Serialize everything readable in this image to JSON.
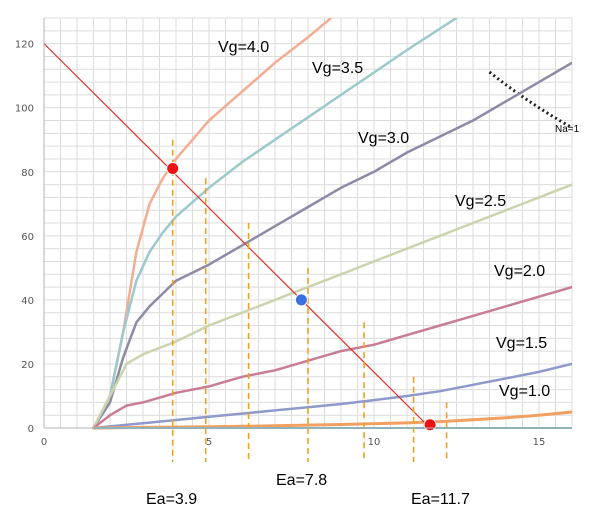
{
  "chart_data": {
    "type": "line",
    "title": "",
    "xlabel": "",
    "ylabel": "",
    "xlim": [
      0,
      16
    ],
    "ylim": [
      0,
      128
    ],
    "x_ticks": [
      0,
      5,
      10,
      15
    ],
    "y_ticks": [
      0,
      20,
      40,
      60,
      80,
      100,
      120
    ],
    "grid": true,
    "series": [
      {
        "name": "Vg=4.0",
        "color": "#f3ad93",
        "x": [
          1.5,
          2.0,
          2.4,
          2.8,
          3.2,
          3.6,
          4.0,
          5.0,
          6.0,
          7.0,
          8.0,
          8.7
        ],
        "y": [
          0,
          10,
          30,
          55,
          70,
          78,
          84,
          96,
          105,
          114,
          122,
          128
        ]
      },
      {
        "name": "Vg=3.5",
        "color": "#9bc9cc",
        "x": [
          1.5,
          2.0,
          2.4,
          2.8,
          3.2,
          3.6,
          4.0,
          5.0,
          6.0,
          7.0,
          8.0,
          9.0,
          10.0,
          11.0,
          12.5
        ],
        "y": [
          0,
          10,
          30,
          46,
          55,
          61,
          66,
          75,
          83,
          90,
          97,
          104,
          111,
          118,
          128
        ]
      },
      {
        "name": "Vg=3.0",
        "color": "#8d8aa6",
        "x": [
          1.5,
          2.0,
          2.4,
          2.8,
          3.2,
          3.6,
          4.0,
          5.0,
          6.0,
          7.0,
          8.0,
          9.0,
          10.0,
          11.0,
          12.0,
          13.0,
          14.0,
          15.0,
          16.0
        ],
        "y": [
          0,
          8,
          22,
          33,
          38,
          42,
          46,
          51,
          57,
          63,
          69,
          75,
          80,
          86,
          91,
          96,
          102,
          108,
          114
        ]
      },
      {
        "name": "Vg=2.5",
        "color": "#cad4ae",
        "x": [
          1.5,
          2.0,
          2.5,
          3.0,
          4.0,
          5.0,
          6.0,
          7.0,
          8.0,
          9.0,
          10.0,
          11.0,
          12.0,
          13.0,
          14.0,
          15.0,
          16.0
        ],
        "y": [
          0,
          10,
          20,
          23,
          27,
          32,
          36,
          40,
          44,
          48,
          52,
          56,
          60,
          64,
          68,
          72,
          76
        ]
      },
      {
        "name": "Vg=2.0",
        "color": "#c87d95",
        "x": [
          1.5,
          2.0,
          2.5,
          3.0,
          4.0,
          5.0,
          6.0,
          7.0,
          8.0,
          9.0,
          10.0,
          11.0,
          12.0,
          13.0,
          14.0,
          15.0,
          16.0
        ],
        "y": [
          0,
          4,
          7,
          8,
          11,
          13,
          16,
          18,
          21,
          24,
          26,
          29,
          32,
          35,
          38,
          41,
          44
        ]
      },
      {
        "name": "Vg=1.5",
        "color": "#8e9acb",
        "x": [
          1.5,
          2.0,
          3.0,
          4.0,
          5.0,
          6.0,
          7.0,
          8.0,
          9.0,
          10.0,
          11.0,
          12.0,
          13.0,
          14.0,
          15.0,
          16.0
        ],
        "y": [
          0,
          0.5,
          1.5,
          2.5,
          3.5,
          4.5,
          5.5,
          6.5,
          7.5,
          8.7,
          10,
          11.5,
          13.5,
          15.5,
          17.5,
          20
        ]
      },
      {
        "name": "Vg=1.0",
        "color": "#f0a060",
        "x": [
          1.5,
          3.0,
          5.0,
          7.0,
          9.0,
          11.0,
          12.0,
          13.0,
          14.0,
          15.0,
          16.0
        ],
        "y": [
          0,
          0.2,
          0.4,
          0.7,
          1.1,
          1.6,
          2.0,
          2.6,
          3.2,
          4.0,
          5.0
        ]
      }
    ],
    "load_line": {
      "color": "#e0302a",
      "x": [
        0,
        11.7
      ],
      "y": [
        120,
        0
      ]
    },
    "operating_points": [
      {
        "x": 3.9,
        "y": 81,
        "color": "#ee1111"
      },
      {
        "x": 7.8,
        "y": 40,
        "color": "#3b6fe0"
      },
      {
        "x": 11.7,
        "y": 1,
        "color": "#ee1111"
      }
    ],
    "vertical_guides": [
      {
        "x": 3.9,
        "y_top": 90
      },
      {
        "x": 4.9,
        "y_top": 78
      },
      {
        "x": 6.2,
        "y_top": 64
      },
      {
        "x": 8.0,
        "y_top": 50
      },
      {
        "x": 9.7,
        "y_top": 33
      },
      {
        "x": 11.2,
        "y_top": 16
      },
      {
        "x": 12.2,
        "y_top": 8
      }
    ],
    "guide_color": "#f0a020",
    "annotations": {
      "ea_labels": [
        "Ea=3.9",
        "Ea=7.8",
        "Ea=11.7"
      ],
      "partial_label": "Na=1"
    }
  }
}
